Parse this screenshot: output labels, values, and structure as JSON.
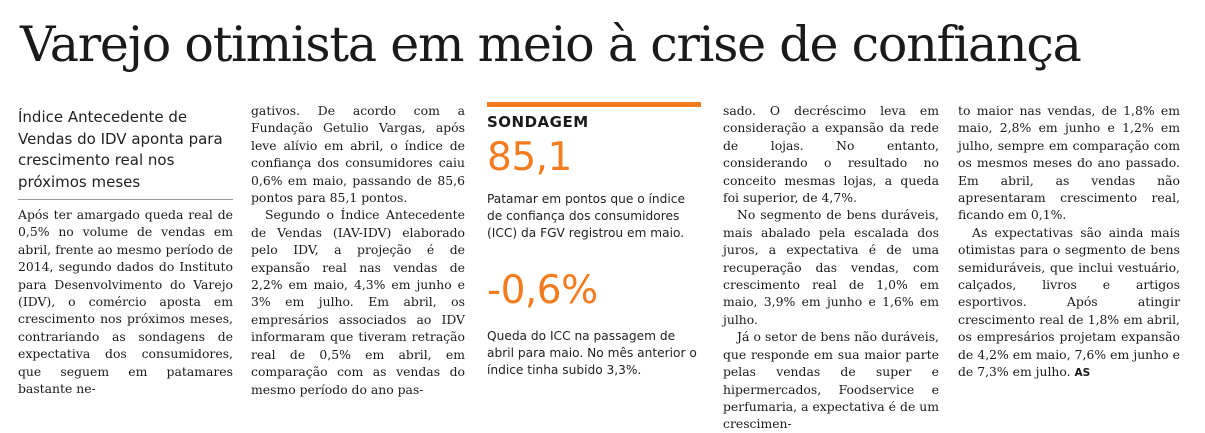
{
  "article": {
    "title": "Varejo otimista em meio à crise de confiança",
    "dek": "Índice Antecedente de Vendas do IDV aponta para crescimento real nos próximos meses",
    "col1": [
      "Após ter amargado queda real de 0,5% no volume de vendas em abril, frente ao mesmo período de 2014, segundo dados do Instituto para Desenvolvimento do Varejo (IDV), o comércio aposta em crescimento nos próximos meses, contrariando as sondagens de expectativa dos consumidores, que seguem em patamares bastante ne-"
    ],
    "col2": [
      "gativos. De acordo com a Fundação Getulio Vargas, após leve alívio em abril, o índice de confiança dos consumidores caiu 0,6% em maio, passando de 85,6 pontos para 85,1 pontos.",
      "Segundo o Índice Antecedente de Vendas (IAV-IDV) elaborado pelo IDV, a projeção é de expansão real nas vendas de 2,2% em maio, 4,3% em junho e 3% em julho. Em abril, os empresários associados ao IDV informaram que tiveram retração real de 0,5% em abril, em comparação com as vendas do mesmo período do ano pas-"
    ],
    "col4": [
      "sado. O decréscimo leva em consideração a expansão da rede de lojas. No entanto, considerando o resultado no conceito mesmas lojas, a queda foi superior, de 4,7%.",
      "No segmento de bens duráveis, mais abalado pela escalada dos juros, a expectativa é de uma recuperação das vendas, com crescimento real de 1,0% em maio, 3,9% em junho e 1,6% em julho.",
      "Já o setor de bens não duráveis, que responde em sua maior parte pelas vendas de super e hipermercados, Foodservice e perfumaria, a expectativa é de um crescimen-"
    ],
    "col5": [
      "to maior nas vendas, de 1,8% em maio, 2,8% em junho e 1,2% em julho, sempre em comparação com os mesmos meses do ano passado. Em abril, as vendas não apresentaram crescimento real, ficando em 0,1%.",
      "As expectativas são ainda mais otimistas para o segmento de bens semiduráveis, que inclui vestuário, calçados, livros e artigos esportivos. Após atingir crescimento real de 1,8% em abril, os empresários projetam expansão de 4,2% em maio, 7,6% em junho e de 7,3% em julho."
    ],
    "signature": "AS"
  },
  "sidebar": {
    "kicker": "SONDAGEM",
    "value1": "85,1",
    "caption1": "Patamar em pontos que o índice de confiança dos consumidores (ICC) da FGV registrou em maio.",
    "value2": "-0,6%",
    "caption2": "Queda do ICC na passagem de abril para maio. No mês anterior o índice tinha subido 3,3%.",
    "accent_color": "#f47c20"
  }
}
